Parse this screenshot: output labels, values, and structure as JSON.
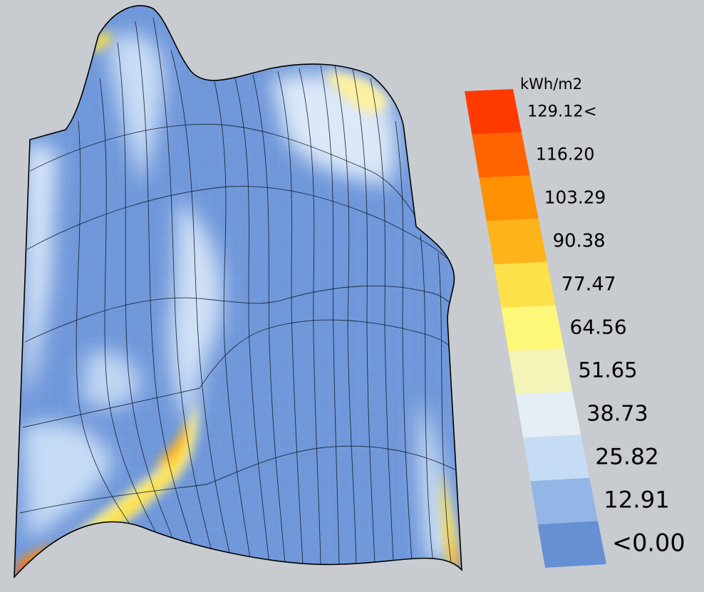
{
  "legend": {
    "unit": "kWh/m2",
    "labels": [
      "129.12<",
      "116.20",
      "103.29",
      "90.38",
      "77.47",
      "64.56",
      "51.65",
      "38.73",
      "25.82",
      "12.91",
      "<0.00"
    ],
    "colors": [
      "#ff3a00",
      "#ff6400",
      "#ff9000",
      "#fdb41a",
      "#fde04a",
      "#fdf77a",
      "#f4f4b8",
      "#e4eef4",
      "#c6dcf5",
      "#93b6e6",
      "#6690d4"
    ]
  },
  "surface": {
    "base_color": "#6f97da",
    "outline_color": "#000000"
  }
}
